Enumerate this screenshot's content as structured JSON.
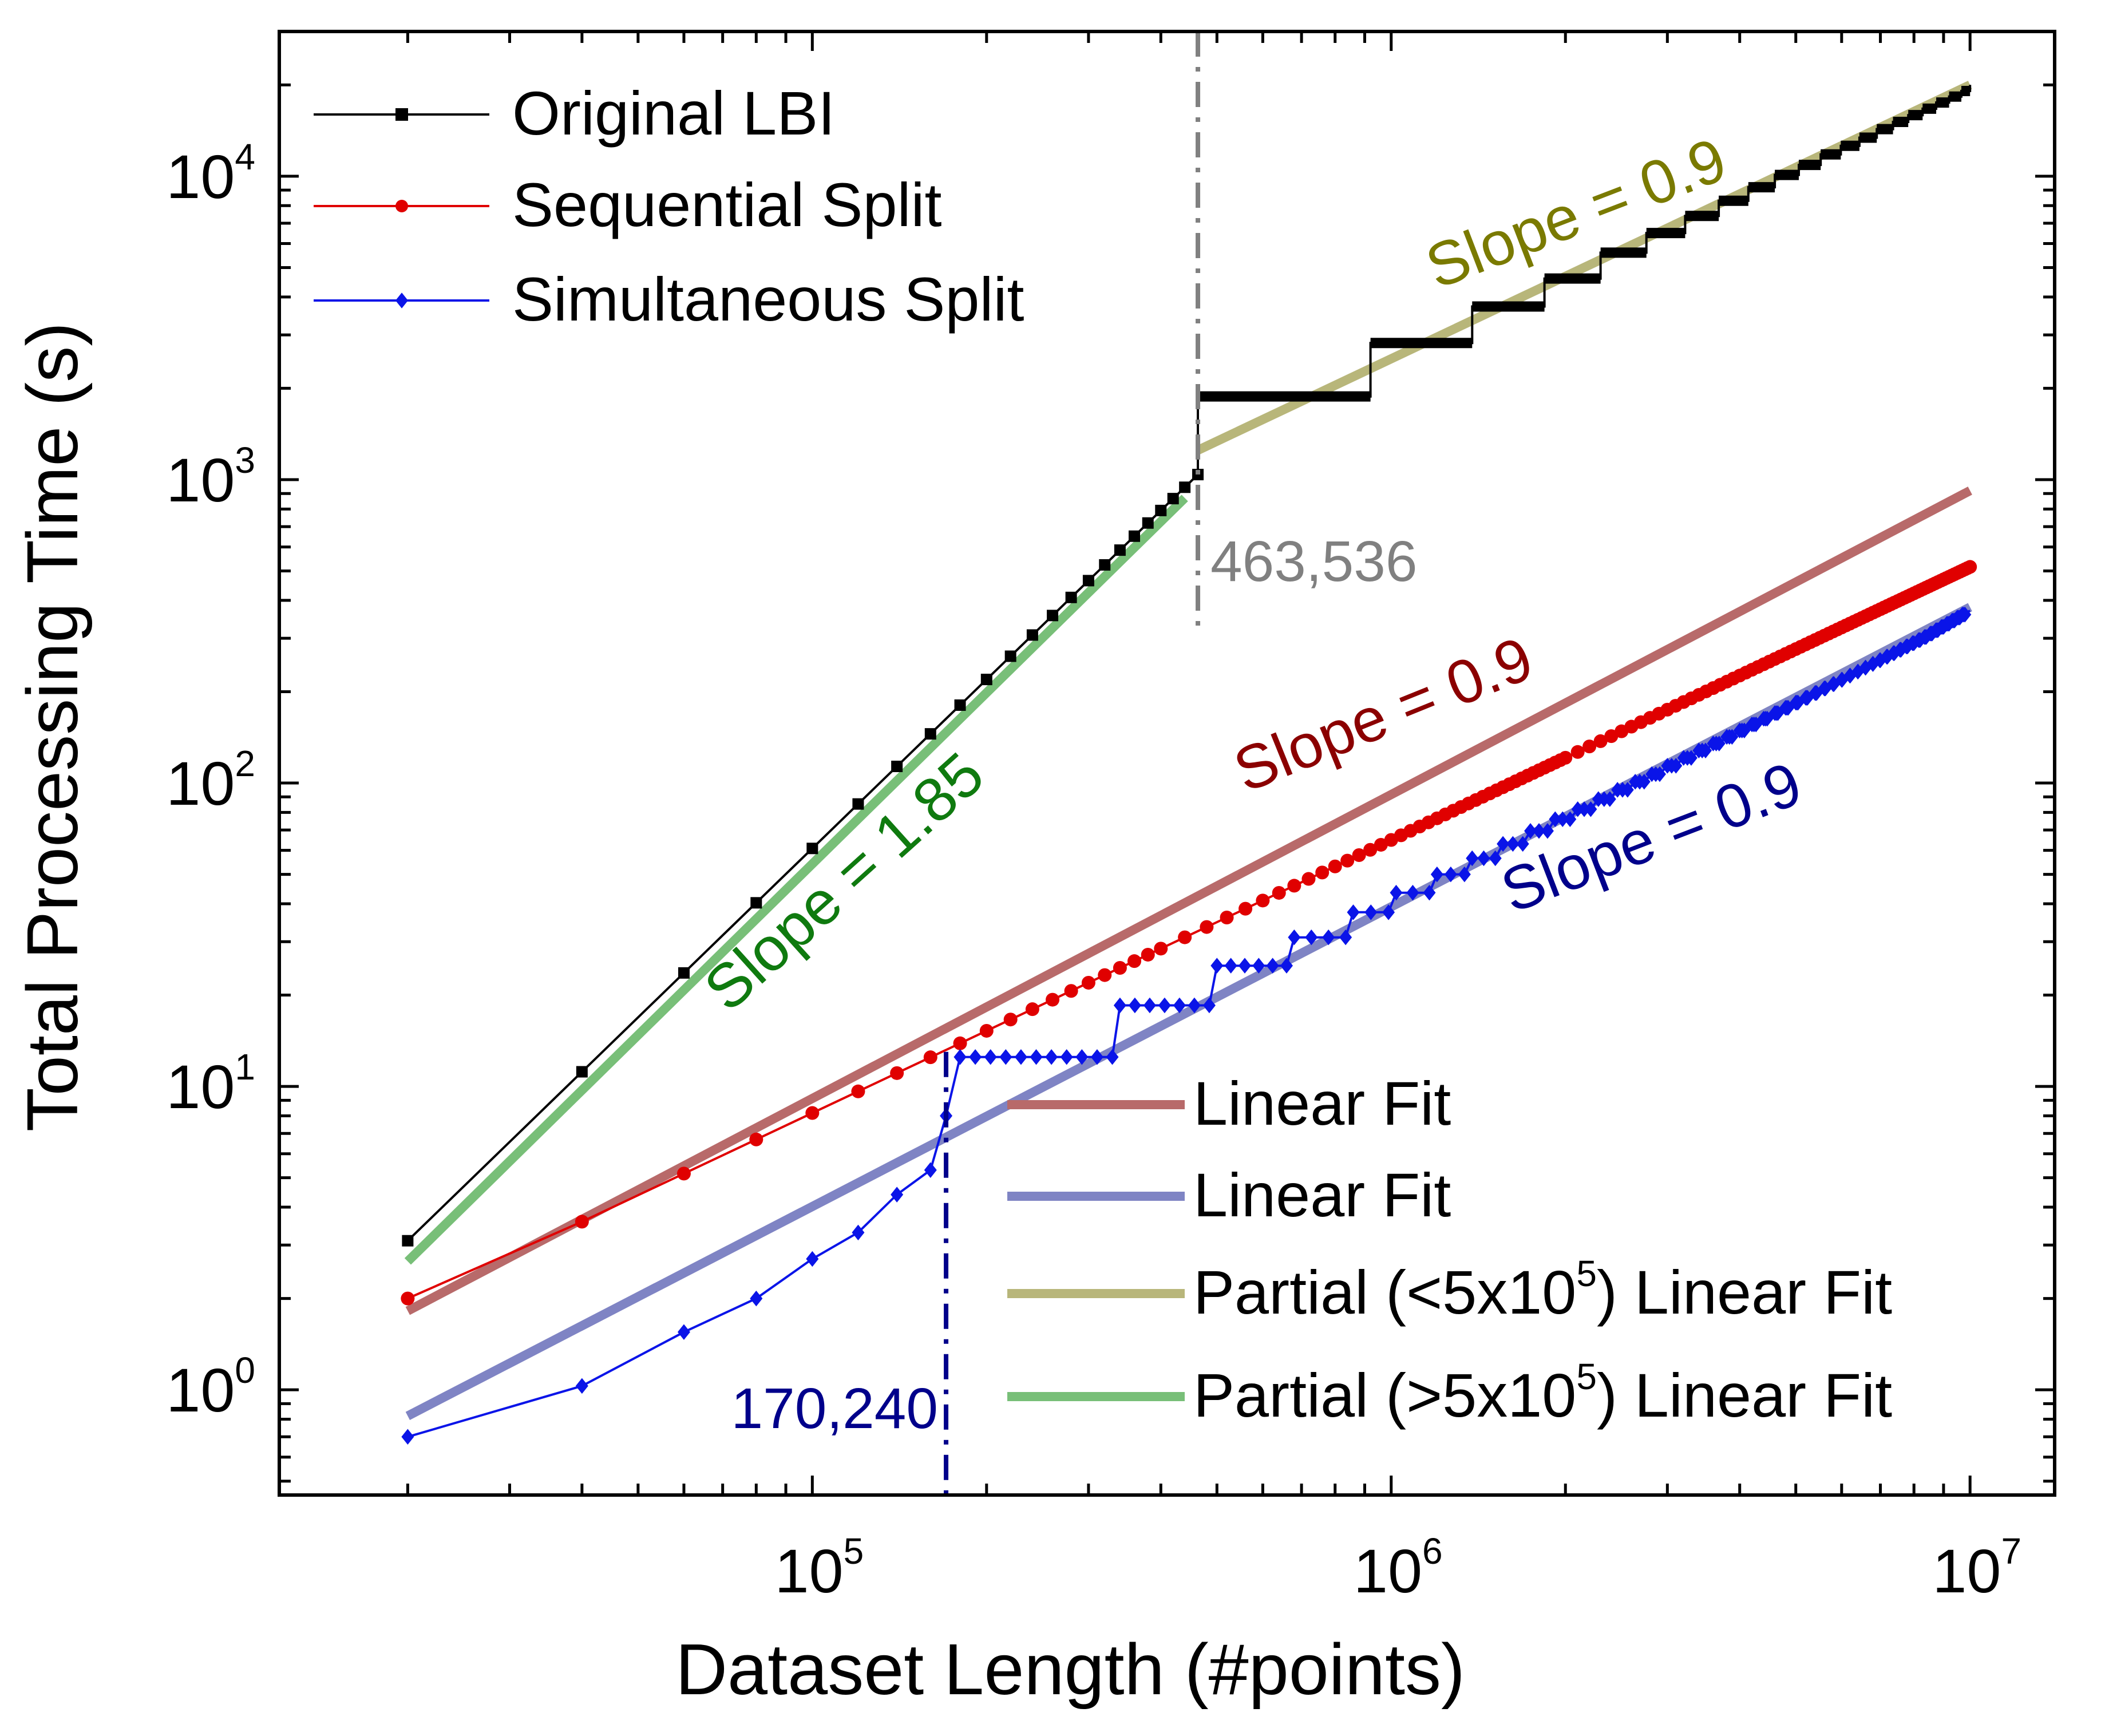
{
  "chart_data": {
    "type": "line",
    "xscale": "log",
    "yscale": "log",
    "xlim": [
      12000,
      14000000
    ],
    "ylim": [
      0.45,
      30000
    ],
    "xlabel": "Dataset Length (#points)",
    "ylabel": "Total Processing Time (s)",
    "x_ticks": [
      {
        "value": 100000,
        "base": "10",
        "exp": "5"
      },
      {
        "value": 1000000,
        "base": "10",
        "exp": "6"
      },
      {
        "value": 10000000,
        "base": "10",
        "exp": "7"
      }
    ],
    "y_ticks": [
      {
        "value": 1,
        "base": "10",
        "exp": "0"
      },
      {
        "value": 10,
        "base": "10",
        "exp": "1"
      },
      {
        "value": 100,
        "base": "10",
        "exp": "2"
      },
      {
        "value": 1000,
        "base": "10",
        "exp": "3"
      },
      {
        "value": 10000,
        "base": "10",
        "exp": "4"
      }
    ],
    "colors": {
      "original": "#000000",
      "sequential": "#e00000",
      "simultaneous": "#0a14e8",
      "fit_sequential": "#b86a6a",
      "fit_simultaneous": "#7f84c4",
      "fit_partial_high": "#b8b67a",
      "fit_partial_low": "#78bf78",
      "slope_original_low": "#0f7a0f",
      "slope_original_high": "#7a7a00",
      "slope_sequential": "#8b0000",
      "slope_simultaneous": "#00008b",
      "vline_original": "#808080",
      "vline_simultaneous": "#00008b"
    },
    "series": [
      {
        "name": "Original LBI",
        "key": "original",
        "marker": "square",
        "model": {
          "a": 3.1,
          "b": 1.85,
          "x0": 20000,
          "split": 463536,
          "steps": [
            [
              463536,
              1880
            ],
            [
              921000,
              2820
            ],
            [
              1380000,
              3720
            ],
            [
              1840000,
              4600
            ],
            [
              2300000,
              5600
            ],
            [
              2760000,
              6500
            ],
            [
              3220000,
              7400
            ],
            [
              3680000,
              8300
            ],
            [
              4140000,
              9200
            ],
            [
              4600000,
              10100
            ],
            [
              5060000,
              10900
            ],
            [
              5520000,
              11800
            ],
            [
              5980000,
              12600
            ],
            [
              6440000,
              13400
            ],
            [
              6900000,
              14300
            ],
            [
              7360000,
              15100
            ],
            [
              7820000,
              15900
            ],
            [
              8280000,
              16700
            ],
            [
              8740000,
              17500
            ],
            [
              9200000,
              18300
            ],
            [
              9660000,
              19100
            ],
            [
              10000000,
              20000
            ]
          ]
        }
      },
      {
        "name": "Sequential Split",
        "key": "sequential",
        "marker": "circle",
        "model": {
          "a": 1.92,
          "b": 0.9,
          "x0": 20000,
          "start": 2.0,
          "end_x": 10000000
        }
      },
      {
        "name": "Simultaneous Split",
        "key": "simultaneous",
        "marker": "diamond",
        "points": [
          [
            20000,
            0.7
          ],
          [
            40000,
            1.03
          ],
          [
            60000,
            1.55
          ],
          [
            80000,
            2.0
          ],
          [
            100000,
            2.7
          ],
          [
            120000,
            3.3
          ],
          [
            140000,
            4.4
          ],
          [
            160000,
            5.3
          ],
          [
            170240,
            8.0
          ],
          [
            180000,
            12.5
          ]
        ],
        "steps": [
          [
            180000,
            12.5
          ],
          [
            340000,
            18.5
          ],
          [
            500000,
            25
          ],
          [
            680000,
            31
          ],
          [
            860000,
            37.5
          ],
          [
            1020000,
            43.5
          ],
          [
            1200000,
            50
          ],
          [
            1380000,
            56.5
          ],
          [
            1560000,
            63
          ],
          [
            1740000,
            69.5
          ],
          [
            1920000,
            76
          ],
          [
            2100000,
            82
          ],
          [
            2280000,
            88.5
          ],
          [
            2460000,
            95
          ],
          [
            2640000,
            101
          ],
          [
            2820000,
            107
          ],
          [
            3000000,
            114
          ],
          [
            3200000,
            121
          ],
          [
            3400000,
            128
          ],
          [
            3600000,
            135
          ],
          [
            3800000,
            142
          ],
          [
            4000000,
            149
          ],
          [
            4200000,
            156
          ],
          [
            4400000,
            163
          ],
          [
            4600000,
            170
          ],
          [
            4800000,
            177
          ],
          [
            5000000,
            184
          ],
          [
            5200000,
            191
          ],
          [
            5400000,
            198
          ],
          [
            5600000,
            205
          ],
          [
            5800000,
            212
          ],
          [
            6000000,
            219
          ],
          [
            6200000,
            226
          ],
          [
            6400000,
            233
          ],
          [
            6600000,
            240
          ],
          [
            6800000,
            247
          ],
          [
            7000000,
            254
          ],
          [
            7200000,
            261
          ],
          [
            7400000,
            268
          ],
          [
            7600000,
            275
          ],
          [
            7800000,
            282
          ],
          [
            8000000,
            289
          ],
          [
            8200000,
            296
          ],
          [
            8400000,
            303
          ],
          [
            8600000,
            311
          ],
          [
            8800000,
            319
          ],
          [
            9000000,
            327
          ],
          [
            9200000,
            335
          ],
          [
            9400000,
            343
          ],
          [
            9600000,
            351
          ],
          [
            9800000,
            359
          ],
          [
            10000000,
            370
          ]
        ]
      }
    ],
    "fits": [
      {
        "key": "fit_sequential",
        "x": [
          20000,
          10000000
        ],
        "y": [
          1.82,
          920
        ]
      },
      {
        "key": "fit_simultaneous",
        "x": [
          20000,
          10000000
        ],
        "y": [
          0.82,
          380
        ]
      },
      {
        "key": "fit_partial_low",
        "x": [
          20000,
          440000
        ],
        "y": [
          2.65,
          870
        ]
      },
      {
        "key": "fit_partial_high",
        "x": [
          463536,
          10000000
        ],
        "y": [
          1250,
          20000
        ]
      }
    ],
    "vlines": [
      {
        "x": 463536,
        "ymin": 330,
        "ymax": 30000,
        "label": "463,536",
        "key": "vline_original"
      },
      {
        "x": 170240,
        "ymin": 0.45,
        "ymax": 13,
        "label": "170,240",
        "key": "vline_simultaneous"
      }
    ],
    "legend_top": [
      {
        "label": "Original LBI",
        "key": "original",
        "marker": "square"
      },
      {
        "label": "Sequential Split",
        "key": "sequential",
        "marker": "circle"
      },
      {
        "label": "Simultaneous Split",
        "key": "simultaneous",
        "marker": "diamond"
      }
    ],
    "legend_bottom": [
      {
        "key": "fit_sequential",
        "parts": [
          "Linear Fit"
        ]
      },
      {
        "key": "fit_simultaneous",
        "parts": [
          "Linear Fit"
        ]
      },
      {
        "key": "fit_partial_high",
        "parts": [
          "Partial (<5x10",
          "5",
          ") Linear Fit"
        ]
      },
      {
        "key": "fit_partial_low",
        "parts": [
          "Partial (>5x10",
          "5",
          ") Linear Fit"
        ]
      }
    ],
    "annotations": [
      {
        "text": "Slope = 1.85",
        "key": "slope_original_low",
        "x": 120000,
        "y": 42,
        "angle": -42
      },
      {
        "text": "Slope = 0.9",
        "key": "slope_original_high",
        "x": 2150000,
        "y": 6500,
        "angle": -21
      },
      {
        "text": "Slope = 0.9",
        "key": "slope_sequential",
        "x": 1000000,
        "y": 145,
        "angle": -22
      },
      {
        "text": "Slope = 0.9",
        "key": "slope_simultaneous",
        "x": 2900000,
        "y": 57,
        "angle": -21
      }
    ]
  }
}
